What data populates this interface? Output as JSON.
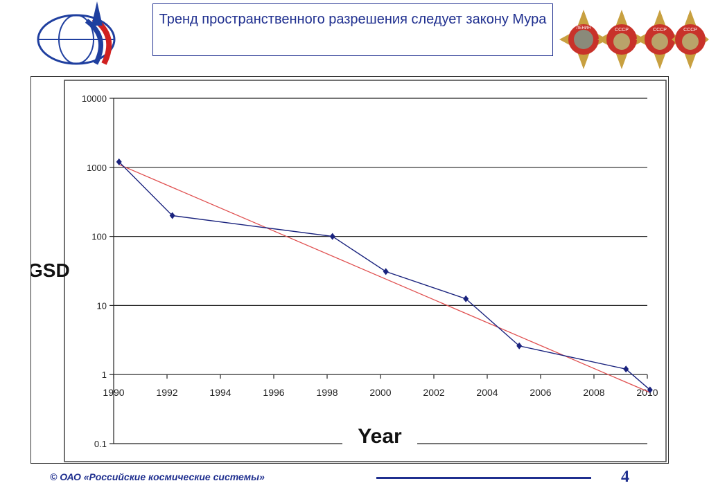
{
  "slide_title": "Тренд пространственного разрешения следует закону Мура",
  "footer": {
    "copyright": "©  ОАО «Российские космические системы»",
    "page_number": "4"
  },
  "medals": {
    "text": [
      "ЛЕНИН",
      "СССР",
      "СССР",
      "СССР"
    ]
  },
  "colors": {
    "accent": "#1f2f8f",
    "series": "#1a237e",
    "trend": "#e05050"
  },
  "chart_data": {
    "type": "line",
    "ylabel": "GSD",
    "xlabel": "Year",
    "y_scale": "log",
    "ylim": [
      0.1,
      10000
    ],
    "xlim": [
      1990,
      2010
    ],
    "y_ticks": [
      "10000",
      "1000",
      "100",
      "10",
      "1",
      "0.1"
    ],
    "x_ticks": [
      "1990",
      "1992",
      "1994",
      "1996",
      "1998",
      "2000",
      "2002",
      "2004",
      "2006",
      "2008",
      "2010"
    ],
    "grid": "horizontal",
    "series": [
      {
        "x": [
          1990.2,
          1992.2,
          1998.2,
          2000.2,
          2003.2,
          2005.2,
          2009.2,
          2010.1
        ],
        "values": [
          1200,
          200,
          100,
          31,
          12.5,
          2.6,
          1.2,
          0.6
        ]
      }
    ],
    "trend_line": {
      "x": [
        1990.2,
        2010.1
      ],
      "values": [
        1100,
        0.55
      ]
    }
  }
}
